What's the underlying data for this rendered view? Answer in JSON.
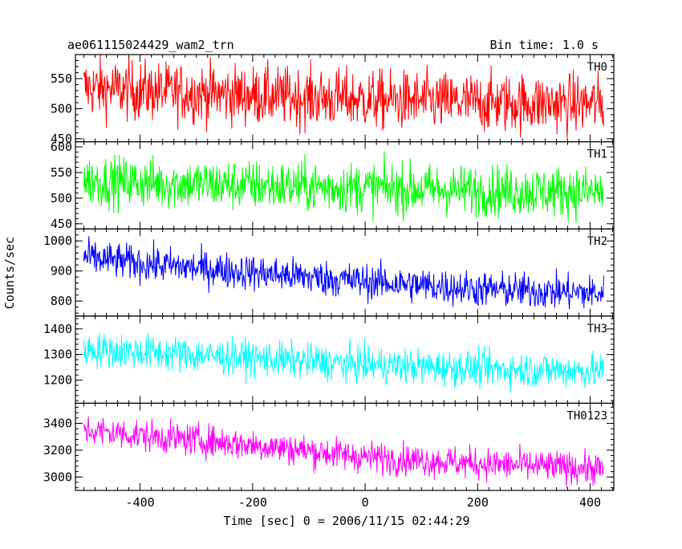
{
  "header": {
    "file_title": "ae061115024429_wam2_trn",
    "bin_time": "Bin time: 1.0 s"
  },
  "chart_data": {
    "type": "line",
    "title": "ae061115024429_wam2_trn",
    "subtitle": "Bin time: 1.0 s",
    "xlabel": "Time [sec] 0 = 2006/11/15 02:44:29",
    "ylabel": "Counts/sec",
    "xlim": [
      -515,
      442
    ],
    "x_range": [
      -500,
      424
    ],
    "x_step": 1.0,
    "x_ticks": [
      -400,
      -200,
      0,
      200,
      400
    ],
    "grid": false,
    "legend": "none",
    "panels": [
      {
        "name": "TH0",
        "color": "#ff0000",
        "ylim": [
          445,
          590
        ],
        "y_ticks": [
          450,
          500,
          550
        ],
        "trend": [
          [
            -500,
            535
          ],
          [
            -400,
            530
          ],
          [
            -200,
            522
          ],
          [
            0,
            515
          ],
          [
            200,
            510
          ],
          [
            424,
            508
          ]
        ],
        "spread": 25
      },
      {
        "name": "TH1",
        "color": "#00ff00",
        "ylim": [
          440,
          610
        ],
        "y_ticks": [
          450,
          500,
          550,
          600
        ],
        "trend": [
          [
            -500,
            535
          ],
          [
            -400,
            530
          ],
          [
            -200,
            525
          ],
          [
            0,
            520
          ],
          [
            200,
            515
          ],
          [
            424,
            512
          ]
        ],
        "spread": 25
      },
      {
        "name": "TH2",
        "color": "#0000ff",
        "ylim": [
          750,
          1040
        ],
        "y_ticks": [
          800,
          900,
          1000
        ],
        "trend": [
          [
            -500,
            945
          ],
          [
            -400,
            925
          ],
          [
            -200,
            895
          ],
          [
            0,
            865
          ],
          [
            200,
            840
          ],
          [
            424,
            825
          ]
        ],
        "spread": 30
      },
      {
        "name": "TH3",
        "color": "#00ffff",
        "ylim": [
          1110,
          1450
        ],
        "y_ticks": [
          1200,
          1300,
          1400
        ],
        "trend": [
          [
            -500,
            1320
          ],
          [
            -400,
            1310
          ],
          [
            -200,
            1285
          ],
          [
            0,
            1260
          ],
          [
            200,
            1245
          ],
          [
            424,
            1235
          ]
        ],
        "spread": 35
      },
      {
        "name": "TH0123",
        "color": "#ff00ff",
        "ylim": [
          2900,
          3550
        ],
        "y_ticks": [
          3000,
          3200,
          3400
        ],
        "trend": [
          [
            -500,
            3350
          ],
          [
            -400,
            3310
          ],
          [
            -200,
            3240
          ],
          [
            0,
            3150
          ],
          [
            200,
            3100
          ],
          [
            424,
            3060
          ]
        ],
        "spread": 60
      }
    ]
  }
}
